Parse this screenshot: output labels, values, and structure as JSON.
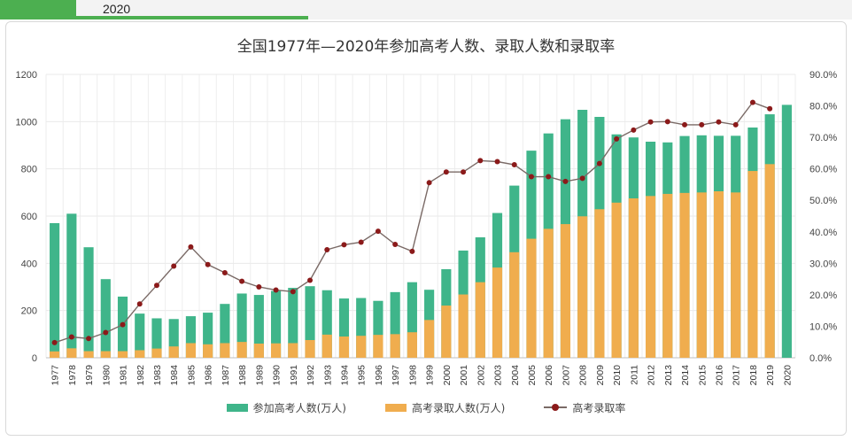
{
  "header": {
    "tab_label": "2020"
  },
  "colors": {
    "applicants": "#3fb58a",
    "admitted": "#f0ad4e",
    "rate": "#8b1a1a",
    "rate_line": "#7a6a66"
  },
  "chart_data": {
    "type": "bar",
    "title": "全国1977年—2020年参加高考人数、录取人数和录取率",
    "categories": [
      "1977",
      "1978",
      "1979",
      "1980",
      "1981",
      "1982",
      "1983",
      "1984",
      "1985",
      "1986",
      "1987",
      "1988",
      "1989",
      "1990",
      "1991",
      "1992",
      "1993",
      "1994",
      "1995",
      "1996",
      "1997",
      "1998",
      "1999",
      "2000",
      "2001",
      "2002",
      "2003",
      "2004",
      "2005",
      "2006",
      "2007",
      "2008",
      "2009",
      "2010",
      "2011",
      "2012",
      "2013",
      "2014",
      "2015",
      "2016",
      "2017",
      "2018",
      "2019",
      "2020"
    ],
    "series": [
      {
        "name": "参加高考人数(万人)",
        "kind": "bar",
        "values": [
          570,
          610,
          468,
          333,
          259,
          187,
          167,
          164,
          176,
          191,
          228,
          272,
          266,
          283,
          296,
          303,
          286,
          251,
          253,
          241,
          278,
          320,
          288,
          375,
          454,
          510,
          613,
          729,
          877,
          950,
          1010,
          1050,
          1020,
          946,
          933,
          915,
          912,
          939,
          942,
          940,
          940,
          975,
          1031,
          1071
        ]
      },
      {
        "name": "高考录取人数(万人)",
        "kind": "bar",
        "values": [
          27,
          40,
          28,
          28,
          28,
          32,
          39,
          48,
          62,
          57,
          62,
          67,
          60,
          61,
          62,
          75,
          98,
          90,
          93,
          97,
          100,
          108,
          160,
          221,
          268,
          320,
          382,
          447,
          504,
          546,
          566,
          599,
          629,
          657,
          675,
          685,
          694,
          698,
          700,
          705,
          700,
          791,
          820,
          null
        ]
      },
      {
        "name": "高考录取率",
        "kind": "line",
        "axis": "right",
        "values": [
          4.8,
          6.6,
          6.1,
          8.0,
          10.5,
          17.1,
          23.0,
          29.1,
          35.2,
          29.6,
          27.0,
          24.3,
          22.5,
          21.5,
          21.0,
          24.6,
          34.3,
          35.9,
          36.7,
          40.2,
          36.0,
          33.8,
          55.6,
          59.0,
          59.0,
          62.6,
          62.3,
          61.3,
          57.5,
          57.5,
          56.0,
          57.0,
          61.7,
          69.5,
          72.3,
          74.9,
          75.0,
          74.0,
          74.0,
          74.9,
          74.0,
          81.1,
          79.1,
          null
        ]
      }
    ],
    "ylim": [
      0,
      1200
    ],
    "yticks": [
      "0",
      "200",
      "400",
      "600",
      "800",
      "1000",
      "1200"
    ],
    "y2lim": [
      0,
      90
    ],
    "y2ticks": [
      "0.0%",
      "10.0%",
      "20.0%",
      "30.0%",
      "40.0%",
      "50.0%",
      "60.0%",
      "70.0%",
      "80.0%",
      "90.0%"
    ],
    "grid": true,
    "legend": "bottom"
  }
}
